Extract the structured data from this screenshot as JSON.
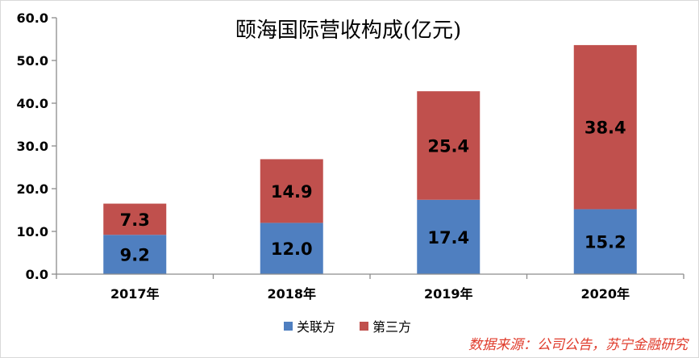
{
  "chart_data": {
    "type": "bar",
    "stacked": true,
    "title": "颐海国际营收构成(亿元)",
    "categories": [
      "2017年",
      "2018年",
      "2019年",
      "2020年"
    ],
    "series": [
      {
        "name": "关联方",
        "values": [
          9.2,
          12.0,
          17.4,
          15.2
        ],
        "color": "#4f7fc0"
      },
      {
        "name": "第三方",
        "values": [
          7.3,
          14.9,
          25.4,
          38.4
        ],
        "color": "#c0504d"
      }
    ],
    "data_labels": [
      [
        "9.2",
        "12.0",
        "17.4",
        "15.2"
      ],
      [
        "7.3",
        "14.9",
        "25.4",
        "38.4"
      ]
    ],
    "ylim": [
      0,
      60
    ],
    "yticks": [
      "0.0",
      "10.0",
      "20.0",
      "30.0",
      "40.0",
      "50.0",
      "60.0"
    ],
    "grid": false,
    "legend_position": "bottom"
  },
  "source_note": "数据来源：公司公告，苏宁金融研究"
}
